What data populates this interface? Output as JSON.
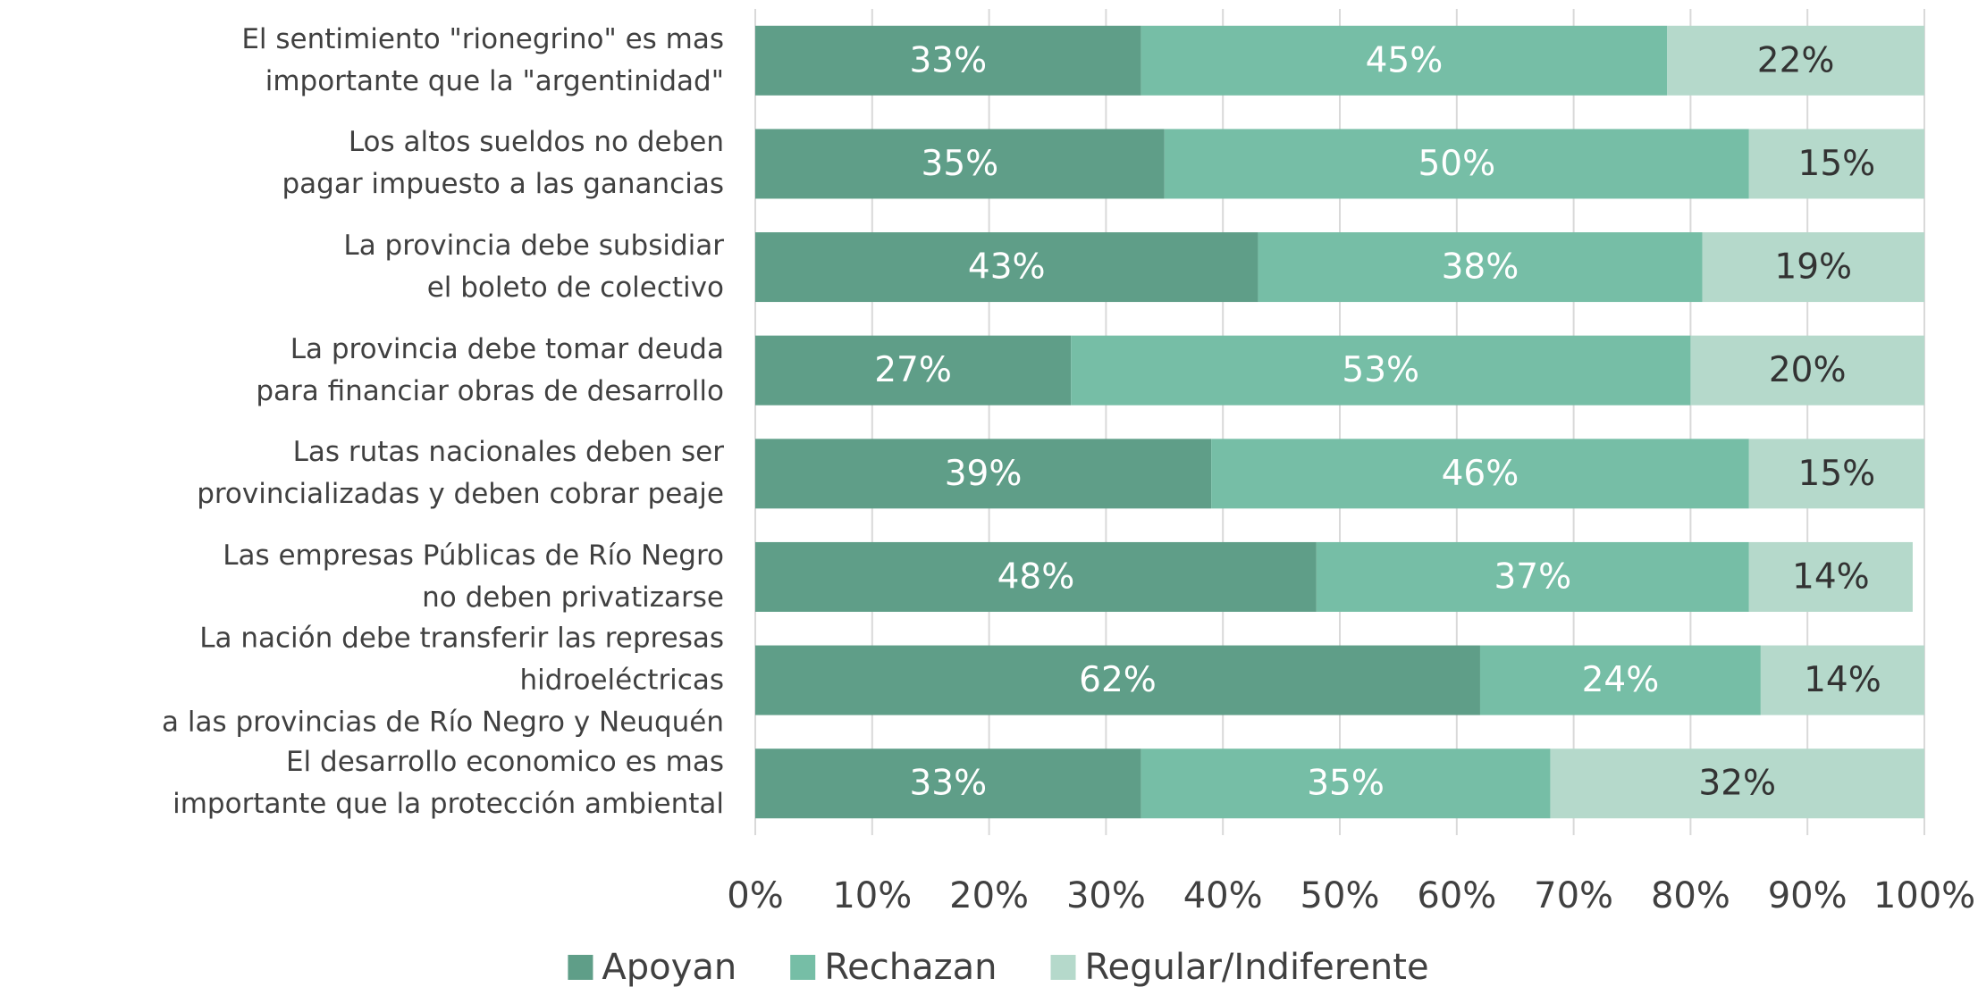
{
  "chart_data": {
    "type": "stacked-barh",
    "categories": [
      "El sentimiento \"rionegrino\" es mas\nimportante que la \"argentinidad\"",
      "Los altos sueldos no deben\npagar impuesto a las ganancias",
      "La provincia debe subsidiar\nel boleto de colectivo",
      "La provincia debe tomar deuda\npara financiar obras de desarrollo",
      "Las rutas nacionales deben ser\nprovincializadas y deben cobrar peaje",
      "Las empresas Públicas de Río Negro\nno deben privatizarse",
      "La nación debe transferir las represas hidroeléctricas\na las provincias de Río Negro y Neuquén",
      "El desarrollo economico es mas\nimportante que la protección ambiental"
    ],
    "series": [
      {
        "name": "Apoyan",
        "color": "#5f9e88",
        "label_color": "#ffffff",
        "values": [
          33,
          35,
          43,
          27,
          39,
          48,
          62,
          33
        ],
        "value_labels": [
          "33%",
          "35%",
          "43%",
          "27%",
          "39%",
          "48%",
          "62%",
          "33%"
        ]
      },
      {
        "name": "Rechazan",
        "color": "#76bea6",
        "label_color": "#ffffff",
        "values": [
          45,
          50,
          38,
          53,
          46,
          37,
          24,
          35
        ],
        "value_labels": [
          "45%",
          "50%",
          "38%",
          "53%",
          "46%",
          "37%",
          "24%",
          "35%"
        ]
      },
      {
        "name": "Regular/Indiferente",
        "color": "#b5d9cb",
        "label_color": "#333333",
        "values": [
          22,
          15,
          19,
          20,
          15,
          14,
          14,
          32
        ],
        "value_labels": [
          "22%",
          "15%",
          "19%",
          "20%",
          "15%",
          "14%",
          "14%",
          "32%"
        ]
      }
    ],
    "xlim": [
      0,
      100
    ],
    "xticks": [
      {
        "value": 0,
        "label": "0%"
      },
      {
        "value": 10,
        "label": "10%"
      },
      {
        "value": 20,
        "label": "20%"
      },
      {
        "value": 30,
        "label": "30%"
      },
      {
        "value": 40,
        "label": "40%"
      },
      {
        "value": 50,
        "label": "50%"
      },
      {
        "value": 60,
        "label": "60%"
      },
      {
        "value": 70,
        "label": "70%"
      },
      {
        "value": 80,
        "label": "80%"
      },
      {
        "value": 90,
        "label": "90%"
      },
      {
        "value": 100,
        "label": "100%"
      }
    ],
    "grid": true,
    "legend": "bottom"
  }
}
